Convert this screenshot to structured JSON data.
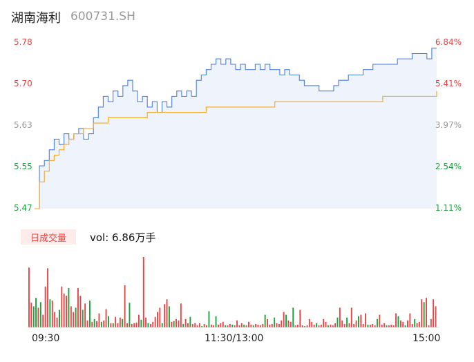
{
  "header": {
    "name": "湖南海利",
    "code": "600731.SH"
  },
  "price_axis": {
    "left": [
      {
        "label": "5.78",
        "color": "#e64545"
      },
      {
        "label": "5.70",
        "color": "#e64545"
      },
      {
        "label": "5.63",
        "color": "#999999"
      },
      {
        "label": "5.55",
        "color": "#1aa33a"
      },
      {
        "label": "5.47",
        "color": "#1aa33a"
      }
    ],
    "right": [
      {
        "label": "6.84%",
        "color": "#e64545"
      },
      {
        "label": "5.41%",
        "color": "#e64545"
      },
      {
        "label": "3.97%",
        "color": "#999999"
      },
      {
        "label": "2.54%",
        "color": "#1aa33a"
      },
      {
        "label": "1.11%",
        "color": "#1aa33a"
      }
    ]
  },
  "volume": {
    "tag": "日成交量",
    "text": "vol: 6.86万手"
  },
  "x_axis": [
    "09:30",
    "11:30/13:00",
    "15:00"
  ],
  "colors": {
    "price_line": "#4a7fe0",
    "avg_line": "#f5a623",
    "up": "#e64545",
    "down": "#1aa33a",
    "fill": "#eef3fc"
  },
  "chart_data": {
    "type": "line",
    "ylim": [
      5.47,
      5.78
    ],
    "series": [
      {
        "values": [
          5.47,
          5.55,
          5.56,
          5.58,
          5.6,
          5.59,
          5.61,
          5.6,
          5.61,
          5.62,
          5.6,
          5.61,
          5.64,
          5.66,
          5.68,
          5.67,
          5.69,
          5.68,
          5.7,
          5.71,
          5.69,
          5.67,
          5.68,
          5.66,
          5.67,
          5.65,
          5.67,
          5.66,
          5.68,
          5.69,
          5.68,
          5.69,
          5.68,
          5.71,
          5.72,
          5.73,
          5.74,
          5.75,
          5.74,
          5.75,
          5.74,
          5.73,
          5.74,
          5.73,
          5.73,
          5.74,
          5.73,
          5.74,
          5.73,
          5.73,
          5.72,
          5.73,
          5.72,
          5.72,
          5.71,
          5.7,
          5.7,
          5.7,
          5.69,
          5.69,
          5.69,
          5.7,
          5.71,
          5.71,
          5.72,
          5.72,
          5.72,
          5.73,
          5.73,
          5.74,
          5.74,
          5.74,
          5.74,
          5.74,
          5.75,
          5.75,
          5.75,
          5.76,
          5.76,
          5.76,
          5.75,
          5.77,
          5.77
        ]
      },
      {
        "values": [
          5.47,
          5.52,
          5.54,
          5.56,
          5.57,
          5.58,
          5.59,
          5.6,
          5.61,
          5.61,
          5.62,
          5.62,
          5.63,
          5.63,
          5.63,
          5.64,
          5.64,
          5.64,
          5.64,
          5.64,
          5.64,
          5.64,
          5.64,
          5.65,
          5.65,
          5.65,
          5.65,
          5.65,
          5.65,
          5.65,
          5.65,
          5.65,
          5.65,
          5.65,
          5.65,
          5.66,
          5.66,
          5.66,
          5.66,
          5.66,
          5.66,
          5.66,
          5.66,
          5.66,
          5.66,
          5.66,
          5.66,
          5.66,
          5.66,
          5.67,
          5.67,
          5.67,
          5.67,
          5.67,
          5.67,
          5.67,
          5.67,
          5.67,
          5.67,
          5.67,
          5.67,
          5.67,
          5.67,
          5.67,
          5.67,
          5.67,
          5.67,
          5.67,
          5.67,
          5.67,
          5.67,
          5.68,
          5.68,
          5.68,
          5.68,
          5.68,
          5.68,
          5.68,
          5.68,
          5.68,
          5.68,
          5.68,
          5.69
        ]
      }
    ],
    "volume_bars": [
      {
        "v": 85,
        "d": "up"
      },
      {
        "v": 35,
        "d": "up"
      },
      {
        "v": 30,
        "d": "down"
      },
      {
        "v": 42,
        "d": "down"
      },
      {
        "v": 28,
        "d": "up"
      },
      {
        "v": 36,
        "d": "down"
      },
      {
        "v": 18,
        "d": "up"
      },
      {
        "v": 58,
        "d": "up"
      },
      {
        "v": 84,
        "d": "up"
      },
      {
        "v": 40,
        "d": "down"
      },
      {
        "v": 38,
        "d": "up"
      },
      {
        "v": 22,
        "d": "up"
      },
      {
        "v": 14,
        "d": "up"
      },
      {
        "v": 25,
        "d": "down"
      },
      {
        "v": 58,
        "d": "up"
      },
      {
        "v": 48,
        "d": "up"
      },
      {
        "v": 45,
        "d": "up"
      },
      {
        "v": 56,
        "d": "down"
      },
      {
        "v": 30,
        "d": "up"
      },
      {
        "v": 22,
        "d": "up"
      },
      {
        "v": 28,
        "d": "down"
      },
      {
        "v": 56,
        "d": "up"
      },
      {
        "v": 45,
        "d": "up"
      },
      {
        "v": 25,
        "d": "down"
      },
      {
        "v": 34,
        "d": "up"
      },
      {
        "v": 10,
        "d": "up"
      },
      {
        "v": 38,
        "d": "down"
      },
      {
        "v": 8,
        "d": "up"
      },
      {
        "v": 12,
        "d": "down"
      },
      {
        "v": 9,
        "d": "up"
      },
      {
        "v": 20,
        "d": "up"
      },
      {
        "v": 8,
        "d": "down"
      },
      {
        "v": 10,
        "d": "up"
      },
      {
        "v": 26,
        "d": "up"
      },
      {
        "v": 16,
        "d": "down"
      },
      {
        "v": 6,
        "d": "up"
      },
      {
        "v": 6,
        "d": "down"
      },
      {
        "v": 15,
        "d": "up"
      },
      {
        "v": 6,
        "d": "up"
      },
      {
        "v": 14,
        "d": "up"
      },
      {
        "v": 12,
        "d": "down"
      },
      {
        "v": 60,
        "d": "up"
      },
      {
        "v": 6,
        "d": "up"
      },
      {
        "v": 35,
        "d": "down"
      },
      {
        "v": 5,
        "d": "up"
      },
      {
        "v": 6,
        "d": "up"
      },
      {
        "v": 7,
        "d": "up"
      },
      {
        "v": 18,
        "d": "up"
      },
      {
        "v": 11,
        "d": "down"
      },
      {
        "v": 100,
        "d": "up"
      },
      {
        "v": 14,
        "d": "up"
      },
      {
        "v": 6,
        "d": "down"
      },
      {
        "v": 5,
        "d": "up"
      },
      {
        "v": 8,
        "d": "up"
      },
      {
        "v": 15,
        "d": "up"
      },
      {
        "v": 22,
        "d": "up"
      },
      {
        "v": 28,
        "d": "up"
      },
      {
        "v": 6,
        "d": "down"
      },
      {
        "v": 33,
        "d": "up"
      },
      {
        "v": 40,
        "d": "up"
      },
      {
        "v": 30,
        "d": "down"
      },
      {
        "v": 8,
        "d": "up"
      },
      {
        "v": 9,
        "d": "down"
      },
      {
        "v": 12,
        "d": "up"
      },
      {
        "v": 10,
        "d": "up"
      },
      {
        "v": 34,
        "d": "up"
      },
      {
        "v": 5,
        "d": "down"
      },
      {
        "v": 12,
        "d": "up"
      },
      {
        "v": 6,
        "d": "up"
      },
      {
        "v": 15,
        "d": "down"
      },
      {
        "v": 5,
        "d": "up"
      },
      {
        "v": 6,
        "d": "up"
      },
      {
        "v": 3,
        "d": "up"
      },
      {
        "v": 6,
        "d": "up"
      },
      {
        "v": 2,
        "d": "down"
      },
      {
        "v": 5,
        "d": "up"
      },
      {
        "v": 3,
        "d": "up"
      },
      {
        "v": 23,
        "d": "down"
      },
      {
        "v": 4,
        "d": "up"
      },
      {
        "v": 3,
        "d": "up"
      },
      {
        "v": 16,
        "d": "down"
      },
      {
        "v": 4,
        "d": "up"
      },
      {
        "v": 6,
        "d": "up"
      },
      {
        "v": 8,
        "d": "up"
      },
      {
        "v": 3,
        "d": "down"
      },
      {
        "v": 3,
        "d": "up"
      },
      {
        "v": 5,
        "d": "up"
      },
      {
        "v": 4,
        "d": "down"
      },
      {
        "v": 3,
        "d": "up"
      },
      {
        "v": 10,
        "d": "up"
      },
      {
        "v": 3,
        "d": "up"
      },
      {
        "v": 6,
        "d": "up"
      },
      {
        "v": 4,
        "d": "down"
      },
      {
        "v": 3,
        "d": "up"
      },
      {
        "v": 8,
        "d": "up"
      },
      {
        "v": 4,
        "d": "up"
      },
      {
        "v": 3,
        "d": "down"
      },
      {
        "v": 5,
        "d": "up"
      },
      {
        "v": 4,
        "d": "up"
      },
      {
        "v": 3,
        "d": "up"
      },
      {
        "v": 5,
        "d": "up"
      },
      {
        "v": 18,
        "d": "down"
      },
      {
        "v": 12,
        "d": "up"
      },
      {
        "v": 4,
        "d": "up"
      },
      {
        "v": 5,
        "d": "up"
      },
      {
        "v": 14,
        "d": "down"
      },
      {
        "v": 6,
        "d": "up"
      },
      {
        "v": 5,
        "d": "up"
      },
      {
        "v": 10,
        "d": "up"
      },
      {
        "v": 22,
        "d": "up"
      },
      {
        "v": 18,
        "d": "down"
      },
      {
        "v": 10,
        "d": "up"
      },
      {
        "v": 8,
        "d": "up"
      },
      {
        "v": 28,
        "d": "down"
      },
      {
        "v": 3,
        "d": "up"
      },
      {
        "v": 4,
        "d": "up"
      },
      {
        "v": 25,
        "d": "up"
      },
      {
        "v": 3,
        "d": "up"
      },
      {
        "v": 2,
        "d": "down"
      },
      {
        "v": 3,
        "d": "up"
      },
      {
        "v": 12,
        "d": "up"
      },
      {
        "v": 8,
        "d": "up"
      },
      {
        "v": 4,
        "d": "up"
      },
      {
        "v": 6,
        "d": "down"
      },
      {
        "v": 3,
        "d": "up"
      },
      {
        "v": 4,
        "d": "up"
      },
      {
        "v": 12,
        "d": "up"
      },
      {
        "v": 8,
        "d": "up"
      },
      {
        "v": 3,
        "d": "down"
      },
      {
        "v": 4,
        "d": "up"
      },
      {
        "v": 3,
        "d": "up"
      },
      {
        "v": 6,
        "d": "up"
      },
      {
        "v": 14,
        "d": "down"
      },
      {
        "v": 28,
        "d": "up"
      },
      {
        "v": 10,
        "d": "up"
      },
      {
        "v": 5,
        "d": "up"
      },
      {
        "v": 14,
        "d": "down"
      },
      {
        "v": 6,
        "d": "up"
      },
      {
        "v": 28,
        "d": "up"
      },
      {
        "v": 5,
        "d": "up"
      },
      {
        "v": 10,
        "d": "up"
      },
      {
        "v": 16,
        "d": "down"
      },
      {
        "v": 18,
        "d": "up"
      },
      {
        "v": 5,
        "d": "up"
      },
      {
        "v": 20,
        "d": "up"
      },
      {
        "v": 4,
        "d": "down"
      },
      {
        "v": 4,
        "d": "up"
      },
      {
        "v": 5,
        "d": "up"
      },
      {
        "v": 3,
        "d": "up"
      },
      {
        "v": 12,
        "d": "down"
      },
      {
        "v": 18,
        "d": "up"
      },
      {
        "v": 4,
        "d": "up"
      },
      {
        "v": 6,
        "d": "up"
      },
      {
        "v": 3,
        "d": "down"
      },
      {
        "v": 3,
        "d": "up"
      },
      {
        "v": 4,
        "d": "up"
      },
      {
        "v": 3,
        "d": "up"
      },
      {
        "v": 20,
        "d": "up"
      },
      {
        "v": 16,
        "d": "down"
      },
      {
        "v": 10,
        "d": "up"
      },
      {
        "v": 8,
        "d": "up"
      },
      {
        "v": 3,
        "d": "down"
      },
      {
        "v": 10,
        "d": "up"
      },
      {
        "v": 20,
        "d": "up"
      },
      {
        "v": 5,
        "d": "up"
      },
      {
        "v": 12,
        "d": "down"
      },
      {
        "v": 6,
        "d": "up"
      },
      {
        "v": 8,
        "d": "up"
      },
      {
        "v": 40,
        "d": "up"
      },
      {
        "v": 36,
        "d": "down"
      },
      {
        "v": 42,
        "d": "up"
      },
      {
        "v": 3,
        "d": "up"
      },
      {
        "v": 12,
        "d": "up"
      },
      {
        "v": 40,
        "d": "up"
      },
      {
        "v": 30,
        "d": "up"
      }
    ]
  }
}
